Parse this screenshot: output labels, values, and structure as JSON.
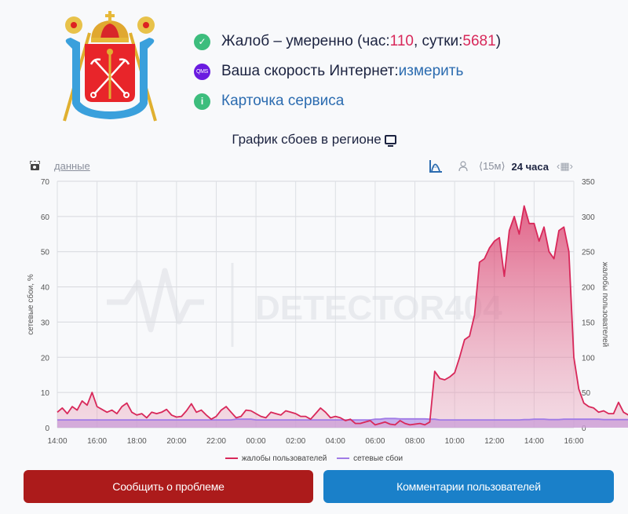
{
  "status": {
    "complaints_label": "Жалоб – умеренно (час: ",
    "hour_count": "110",
    "sep": ", сутки: ",
    "day_count": "5681",
    "close_paren": ")",
    "speed_label": "Ваша скорость Интернет: ",
    "speed_link": "измерить",
    "qms_badge": "QMS",
    "service_card_link": "Карточка сервиса",
    "info_glyph": "i",
    "check_glyph": "✓"
  },
  "chart_title": "График сбоев в регионе",
  "toolbar": {
    "data_link": "данные",
    "interval": "⟨15м⟩",
    "range": "24 часа",
    "calendar": "‹▦›"
  },
  "buttons": {
    "report": "Сообщить о проблеме",
    "comments": "Комментарии пользователей"
  },
  "colors": {
    "complaints": "#d8285a",
    "failures": "#a07be6",
    "report_button": "#ac1b1b",
    "comments_button": "#1a80c9",
    "accent_number": "#d8285a",
    "link": "#2c6cb0"
  },
  "chart_data": {
    "type": "area",
    "title": "График сбоев в регионе",
    "watermark": "DETECTOR404",
    "xlabel": "",
    "ylabel_left": "сетевые сбои, %",
    "ylabel_right": "жалобы пользователей",
    "ylim_left": [
      0,
      70
    ],
    "ylim_right": [
      0,
      350
    ],
    "yticks_left": [
      0,
      10,
      20,
      30,
      40,
      50,
      60,
      70
    ],
    "yticks_right": [
      0,
      50,
      100,
      150,
      200,
      250,
      300,
      350
    ],
    "xticks": [
      "14:00",
      "16:00",
      "18:00",
      "20:00",
      "22:00",
      "00:00",
      "02:00",
      "04:00",
      "06:00",
      "08:00",
      "10:00",
      "12:00",
      "14:00",
      "16:00"
    ],
    "grid": true,
    "legend_position": "bottom",
    "x_start": "14:00",
    "x_step_minutes": 15,
    "series": [
      {
        "name": "жалобы пользователей",
        "axis": "right",
        "color": "#d8285a",
        "values": [
          22,
          28,
          20,
          30,
          25,
          38,
          32,
          50,
          30,
          26,
          22,
          25,
          20,
          30,
          35,
          22,
          18,
          20,
          14,
          22,
          20,
          22,
          26,
          18,
          15,
          16,
          24,
          34,
          22,
          25,
          18,
          12,
          16,
          25,
          30,
          22,
          14,
          16,
          25,
          24,
          20,
          16,
          14,
          22,
          20,
          18,
          24,
          22,
          20,
          16,
          16,
          12,
          20,
          28,
          22,
          14,
          16,
          14,
          10,
          12,
          6,
          6,
          8,
          10,
          4,
          6,
          8,
          5,
          4,
          10,
          6,
          4,
          5,
          6,
          4,
          8,
          80,
          70,
          68,
          72,
          78,
          100,
          125,
          130,
          160,
          235,
          240,
          255,
          265,
          270,
          215,
          280,
          300,
          275,
          315,
          290,
          290,
          265,
          285,
          250,
          240,
          280,
          285,
          250,
          100,
          55,
          35,
          30,
          28,
          22,
          24,
          20,
          20,
          36,
          22,
          18,
          24,
          30,
          20,
          24,
          20,
          16,
          20,
          22,
          18,
          22,
          30,
          25
        ]
      },
      {
        "name": "сетевые сбои",
        "axis": "left",
        "color": "#a07be6",
        "values": [
          2.2,
          2.2,
          2.2,
          2.2,
          2.2,
          2.2,
          2.2,
          2.2,
          2.2,
          2.2,
          2.2,
          2.2,
          2.2,
          2.2,
          2.2,
          2.2,
          2.2,
          2.2,
          2.2,
          2.2,
          2.2,
          2.2,
          2.2,
          2.2,
          2.2,
          2.2,
          2.2,
          2.2,
          2.2,
          2.2,
          2.2,
          2.2,
          2.2,
          2.2,
          2.2,
          2.2,
          2.4,
          2.4,
          2.4,
          2.4,
          2.2,
          2.2,
          2.2,
          2.2,
          2.2,
          2.2,
          2.2,
          2.2,
          2.2,
          2.2,
          2.2,
          2.2,
          2.2,
          2.2,
          2.2,
          2.2,
          2.2,
          2.2,
          2.2,
          2.2,
          2.2,
          2.2,
          2.2,
          2.2,
          2.4,
          2.4,
          2.6,
          2.6,
          2.6,
          2.5,
          2.5,
          2.5,
          2.5,
          2.5,
          2.5,
          2.4,
          2.4,
          2.2,
          2.2,
          2.2,
          2.2,
          2.2,
          2.2,
          2.2,
          2.2,
          2.2,
          2.2,
          2.2,
          2.2,
          2.2,
          2.2,
          2.2,
          2.2,
          2.2,
          2.3,
          2.3,
          2.4,
          2.4,
          2.4,
          2.3,
          2.3,
          2.3,
          2.4,
          2.4,
          2.4,
          2.4,
          2.4,
          2.4,
          2.4,
          2.4,
          2.3,
          2.3,
          2.3,
          2.3,
          2.3,
          2.3,
          2.3,
          2.4,
          2.4,
          2.3,
          2.3,
          2.3,
          2.3,
          2.3,
          2.3,
          2.3,
          2.3
        ]
      }
    ]
  }
}
